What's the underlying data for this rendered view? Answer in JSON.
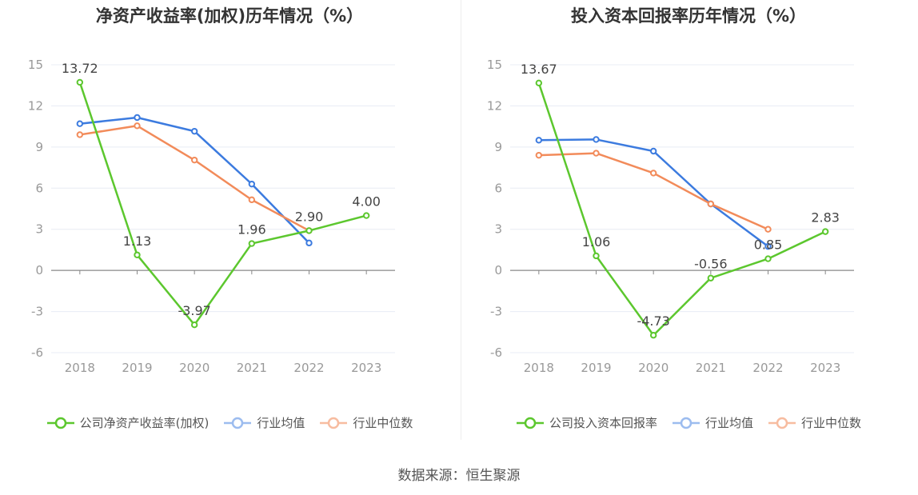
{
  "chart_data": [
    {
      "type": "line",
      "title": "净资产收益率(加权)历年情况（%）",
      "categories": [
        "2018",
        "2019",
        "2020",
        "2021",
        "2022",
        "2023"
      ],
      "y_ticks": [
        "15",
        "12",
        "9",
        "6",
        "3",
        "0",
        "-3",
        "-6"
      ],
      "ylim": [
        -6,
        15
      ],
      "grid": true,
      "legend_position": "bottom-center",
      "series": [
        {
          "name": "公司净资产收益率(加权)",
          "color": "#5cc72e",
          "values": [
            13.72,
            1.13,
            -3.97,
            1.96,
            2.9,
            4.0
          ],
          "labels": [
            "13.72",
            "1.13",
            "-3.97",
            "1.96",
            "2.90",
            "4.00"
          ]
        },
        {
          "name": "行业均值",
          "color": "#3c7bdf",
          "values": [
            10.7,
            11.15,
            10.15,
            6.3,
            2.0,
            null
          ]
        },
        {
          "name": "行业中位数",
          "color": "#f28b5a",
          "values": [
            9.9,
            10.55,
            8.05,
            5.15,
            2.9,
            null
          ]
        }
      ]
    },
    {
      "type": "line",
      "title": "投入资本回报率历年情况（%）",
      "categories": [
        "2018",
        "2019",
        "2020",
        "2021",
        "2022",
        "2023"
      ],
      "y_ticks": [
        "15",
        "12",
        "9",
        "6",
        "3",
        "0",
        "-3",
        "-6"
      ],
      "ylim": [
        -6,
        15
      ],
      "grid": true,
      "legend_position": "bottom-center",
      "series": [
        {
          "name": "公司投入资本回报率",
          "color": "#5cc72e",
          "values": [
            13.67,
            1.06,
            -4.73,
            -0.56,
            0.85,
            2.83
          ],
          "labels": [
            "13.67",
            "1.06",
            "-4.73",
            "-0.56",
            "0.85",
            "2.83"
          ]
        },
        {
          "name": "行业均值",
          "color": "#3c7bdf",
          "values": [
            9.5,
            9.55,
            8.7,
            4.85,
            1.75,
            null
          ]
        },
        {
          "name": "行业中位数",
          "color": "#f28b5a",
          "values": [
            8.4,
            8.55,
            7.1,
            4.85,
            3.0,
            null
          ]
        }
      ]
    }
  ],
  "source": "数据来源：恒生聚源"
}
